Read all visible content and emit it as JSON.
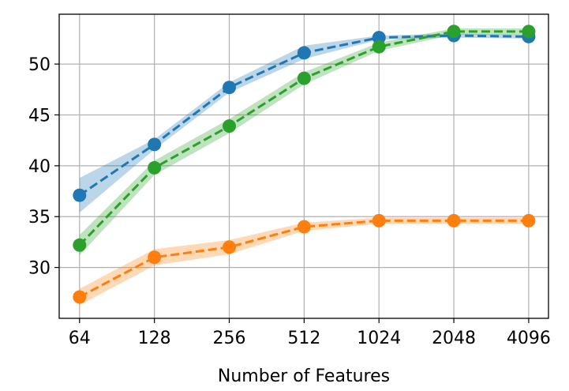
{
  "chart_data": {
    "type": "line",
    "title": "",
    "xlabel": "Number of Features",
    "ylabel": "",
    "x_scale": "log2",
    "categories": [
      "64",
      "128",
      "256",
      "512",
      "1024",
      "2048",
      "4096"
    ],
    "x": [
      64,
      128,
      256,
      512,
      1024,
      2048,
      4096
    ],
    "xlim": [
      53,
      4920
    ],
    "ylim": [
      25.0,
      54.9
    ],
    "yticks": [
      30,
      35,
      40,
      45,
      50
    ],
    "grid": true,
    "legend": "none",
    "series": [
      {
        "color": "#1f77b4",
        "linestyle": "dashed",
        "marker": "circle",
        "values": [
          37.1,
          42.1,
          47.7,
          51.1,
          52.6,
          52.8,
          52.7
        ],
        "lower": [
          35.4,
          41.6,
          47.2,
          50.5,
          52.4,
          52.6,
          52.5
        ],
        "upper": [
          38.8,
          42.6,
          48.2,
          51.8,
          52.8,
          53.0,
          52.9
        ]
      },
      {
        "color": "#ff7f0e",
        "linestyle": "dashed",
        "marker": "circle",
        "values": [
          27.1,
          31.0,
          32.0,
          34.0,
          34.6,
          34.6,
          34.6
        ],
        "lower": [
          26.3,
          30.2,
          31.3,
          33.6,
          34.3,
          34.3,
          34.3
        ],
        "upper": [
          27.9,
          31.8,
          32.7,
          34.4,
          34.9,
          34.9,
          34.9
        ]
      },
      {
        "color": "#2ca02c",
        "linestyle": "dashed",
        "marker": "circle",
        "values": [
          32.2,
          39.8,
          43.9,
          48.6,
          51.7,
          53.2,
          53.2
        ],
        "lower": [
          31.2,
          39.1,
          43.2,
          48.0,
          51.3,
          52.9,
          52.9
        ],
        "upper": [
          33.2,
          40.5,
          44.6,
          49.2,
          52.1,
          53.5,
          53.5
        ]
      }
    ]
  }
}
